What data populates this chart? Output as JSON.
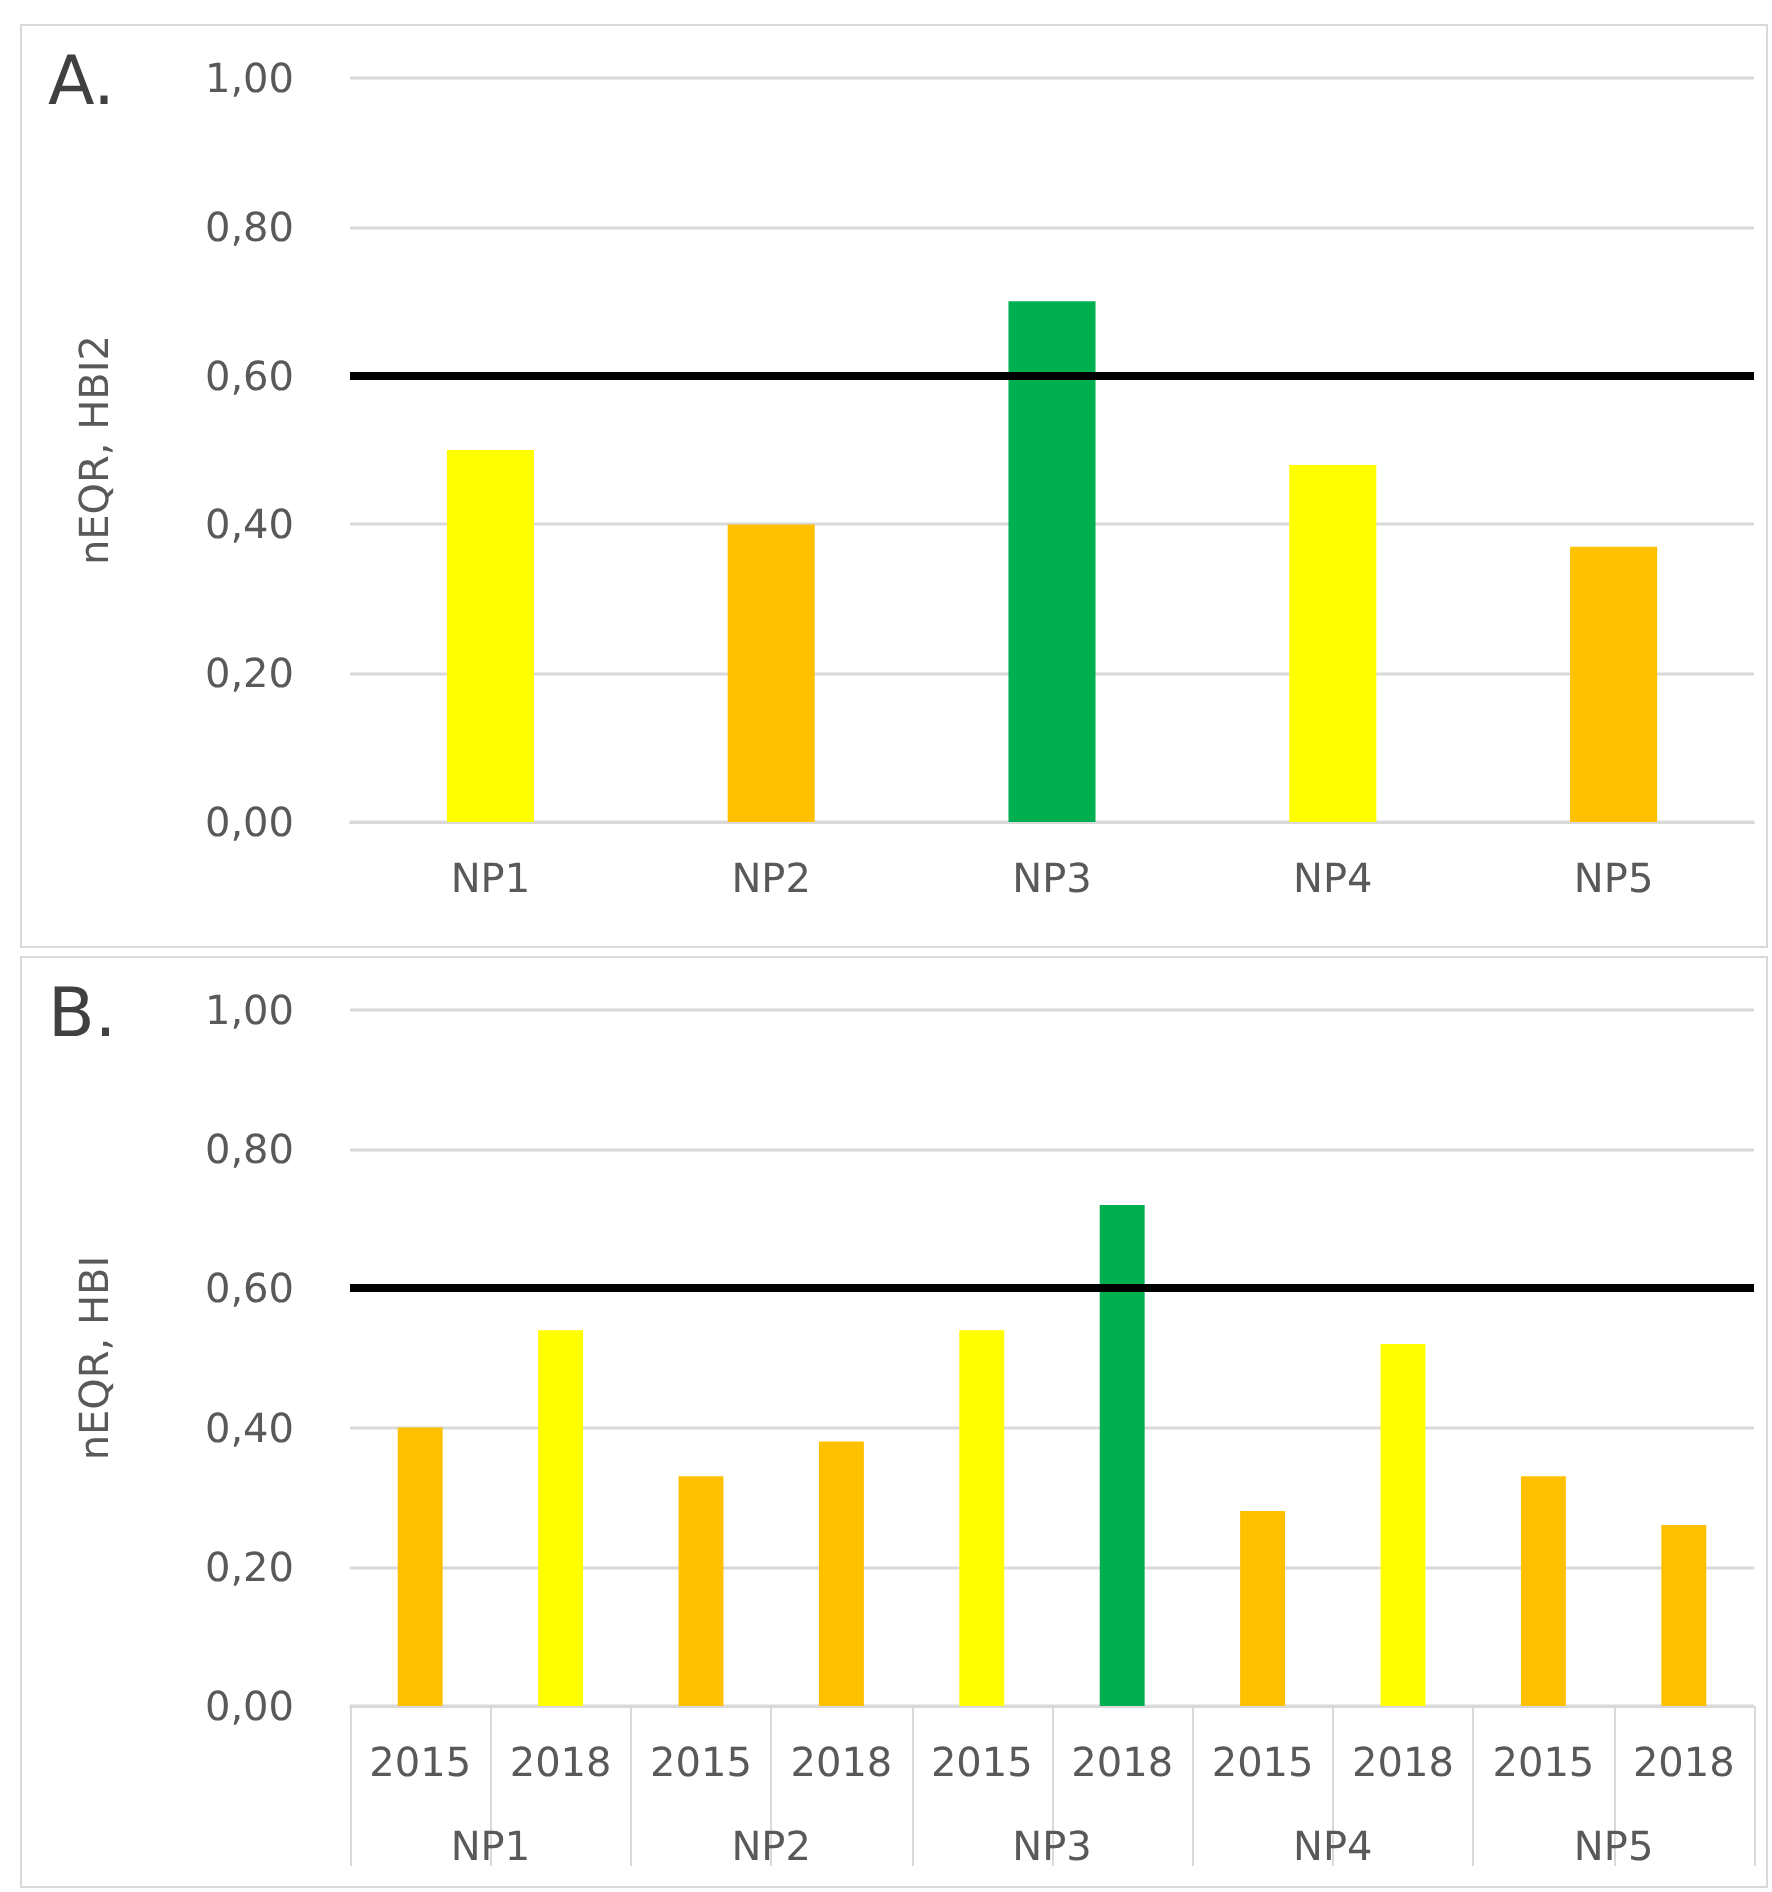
{
  "chart_data": [
    {
      "type": "bar",
      "title": "A.",
      "ylabel": "nEQR, HBI2",
      "categories": [
        "NP1",
        "NP2",
        "NP3",
        "NP4",
        "NP5"
      ],
      "values": [
        0.5,
        0.4,
        0.7,
        0.48,
        0.37
      ],
      "colors": [
        "#ffff00",
        "#ffc000",
        "#00b050",
        "#ffff00",
        "#ffc000"
      ],
      "ylim": [
        0,
        1
      ],
      "yticks": [
        {
          "value": 0,
          "label": "0,00"
        },
        {
          "value": 0.2,
          "label": "0,20"
        },
        {
          "value": 0.4,
          "label": "0,40"
        },
        {
          "value": 0.6,
          "label": "0,60"
        },
        {
          "value": 0.8,
          "label": "0,80"
        },
        {
          "value": 1,
          "label": "1,00"
        }
      ],
      "grid": "y",
      "ref_lines": [
        {
          "axis": "y",
          "value": 0.6,
          "color": "#000000"
        }
      ]
    },
    {
      "type": "bar",
      "title": "B.",
      "ylabel": "nEQR, HBI",
      "categories": [
        "2015",
        "2018",
        "2015",
        "2018",
        "2015",
        "2018",
        "2015",
        "2018",
        "2015",
        "2018"
      ],
      "annotations": [
        "NP1",
        "NP2",
        "NP3",
        "NP4",
        "NP5"
      ],
      "values": [
        0.4,
        0.54,
        0.33,
        0.38,
        0.54,
        0.72,
        0.28,
        0.52,
        0.33,
        0.26
      ],
      "colors": [
        "#ffc000",
        "#ffff00",
        "#ffc000",
        "#ffc000",
        "#ffff00",
        "#00b050",
        "#ffc000",
        "#ffff00",
        "#ffc000",
        "#ffc000"
      ],
      "ylim": [
        0,
        1
      ],
      "yticks": [
        {
          "value": 0,
          "label": "0,00"
        },
        {
          "value": 0.2,
          "label": "0,20"
        },
        {
          "value": 0.4,
          "label": "0,40"
        },
        {
          "value": 0.6,
          "label": "0,60"
        },
        {
          "value": 0.8,
          "label": "0,80"
        },
        {
          "value": 1,
          "label": "1,00"
        }
      ],
      "grid": "y",
      "ref_lines": [
        {
          "axis": "y",
          "value": 0.6,
          "color": "#000000"
        }
      ]
    }
  ]
}
